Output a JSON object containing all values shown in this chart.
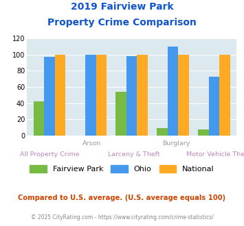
{
  "title_line1": "2019 Fairview Park",
  "title_line2": "Property Crime Comparison",
  "groups": [
    "All Property Crime",
    "Arson",
    "Larceny & Theft",
    "Burglary",
    "Motor Vehicle Theft"
  ],
  "fairview_park": [
    42,
    0,
    54,
    9,
    8
  ],
  "ohio": [
    97,
    100,
    98,
    110,
    73
  ],
  "national": [
    100,
    100,
    100,
    100,
    100
  ],
  "bar_color_fp": "#77bb44",
  "bar_color_ohio": "#4499ee",
  "bar_color_national": "#ffaa22",
  "ylim": [
    0,
    120
  ],
  "yticks": [
    0,
    20,
    40,
    60,
    80,
    100,
    120
  ],
  "bg_color": "#dce9ef",
  "title_color": "#1155cc",
  "xlabel_top_color": "#999999",
  "xlabel_bot_color": "#bb88bb",
  "legend_labels": [
    "Fairview Park",
    "Ohio",
    "National"
  ],
  "footnote1": "Compared to U.S. average. (U.S. average equals 100)",
  "footnote2": "© 2025 CityRating.com - https://www.cityrating.com/crime-statistics/",
  "footnote1_color": "#cc4400",
  "footnote2_color": "#888888",
  "top_xlabels": [
    [
      "Arson",
      1
    ],
    [
      "Burglary",
      3
    ]
  ],
  "bot_xlabels": [
    [
      "All Property Crime",
      0
    ],
    [
      "Larceny & Theft",
      2
    ],
    [
      "Motor Vehicle Theft",
      4
    ]
  ]
}
